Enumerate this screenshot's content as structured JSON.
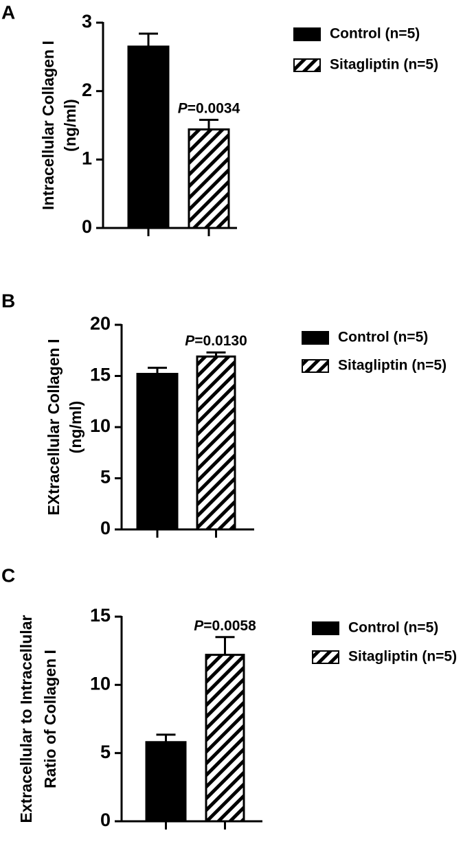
{
  "chart_data": [
    {
      "type": "bar",
      "panel": "A",
      "ylabel": [
        "Intracellular Collagen I",
        "(ng/ml)"
      ],
      "ylim": [
        0,
        3
      ],
      "yticks": [
        0,
        1,
        2,
        3
      ],
      "series": [
        {
          "name": "Control (n=5)",
          "color": "#000000",
          "hatch": false,
          "values": [
            2.65
          ],
          "errors": [
            0.19
          ]
        },
        {
          "name": "Sitagliptin (n=5)",
          "color": "#000000",
          "hatch": true,
          "values": [
            1.44
          ],
          "errors": [
            0.14
          ]
        }
      ],
      "annotation": {
        "italic": "P",
        "text": "=0.0034"
      }
    },
    {
      "type": "bar",
      "panel": "B",
      "ylabel": [
        "EXtracellular Collagen I",
        "(ng/ml)"
      ],
      "ylim": [
        0,
        20
      ],
      "yticks": [
        0,
        5,
        10,
        15,
        20
      ],
      "series": [
        {
          "name": "Control (n=5)",
          "color": "#000000",
          "hatch": false,
          "values": [
            15.2
          ],
          "errors": [
            0.6
          ]
        },
        {
          "name": "Sitagliptin (n=5)",
          "color": "#000000",
          "hatch": true,
          "values": [
            16.9
          ],
          "errors": [
            0.4
          ]
        }
      ],
      "annotation": {
        "italic": "P",
        "text": "=0.0130"
      }
    },
    {
      "type": "bar",
      "panel": "C",
      "ylabel": [
        "Extracellular to Intracellular",
        "Ratio of Collagen I"
      ],
      "ylim": [
        0,
        15
      ],
      "yticks": [
        0,
        5,
        10,
        15
      ],
      "series": [
        {
          "name": "Control (n=5)",
          "color": "#000000",
          "hatch": false,
          "values": [
            5.8
          ],
          "errors": [
            0.55
          ]
        },
        {
          "name": "Sitagliptin (n=5)",
          "color": "#000000",
          "hatch": true,
          "values": [
            12.2
          ],
          "errors": [
            1.3
          ]
        }
      ],
      "annotation": {
        "italic": "P",
        "text": "=0.0058"
      }
    }
  ]
}
